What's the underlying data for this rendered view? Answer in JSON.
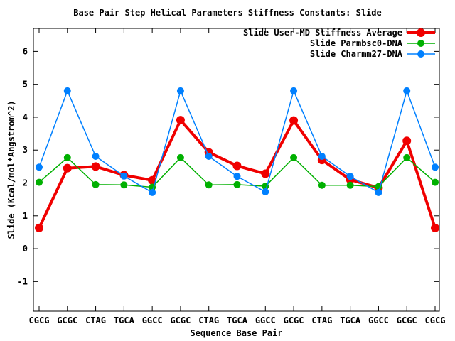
{
  "chart_data": {
    "type": "line",
    "title": "Base Pair Step Helical Parameters Stiffness Constants: Slide",
    "xlabel": "Sequence Base Pair",
    "ylabel": "Slide (Kcal/mol*Angstrom^2)",
    "categories": [
      "CGCG",
      "GCGC",
      "CTAG",
      "TGCA",
      "GGCC",
      "GCGC",
      "CTAG",
      "TGCA",
      "GGCC",
      "GCGC",
      "CTAG",
      "TGCA",
      "GGCC",
      "GCGC",
      "CGCG"
    ],
    "series": [
      {
        "name": "Slide User-MD Stiffness Average",
        "color": "#f00000",
        "line_width": 4,
        "marker": "filled-circle",
        "marker_radius": 6,
        "values": [
          0.63,
          2.45,
          2.5,
          2.24,
          2.08,
          3.91,
          2.93,
          2.52,
          2.28,
          3.9,
          2.7,
          2.1,
          1.85,
          3.28,
          0.63
        ]
      },
      {
        "name": "Slide Parmbsc0-DNA",
        "color": "#00b000",
        "line_width": 1.5,
        "marker": "filled-circle",
        "marker_radius": 5,
        "values": [
          2.02,
          2.77,
          1.95,
          1.94,
          1.87,
          2.77,
          1.94,
          1.95,
          1.9,
          2.77,
          1.93,
          1.93,
          1.89,
          2.77,
          2.02
        ]
      },
      {
        "name": "Slide Charmm27-DNA",
        "color": "#0080ff",
        "line_width": 1.5,
        "marker": "filled-circle",
        "marker_radius": 5,
        "values": [
          2.48,
          4.8,
          2.81,
          2.21,
          1.71,
          4.8,
          2.81,
          2.2,
          1.73,
          4.8,
          2.81,
          2.2,
          1.71,
          4.8,
          2.48
        ]
      }
    ],
    "ylim": [
      -1.9,
      6.7
    ],
    "yticks": [
      -1,
      0,
      1,
      2,
      3,
      4,
      5,
      6
    ],
    "legend_position": "top-right-inside",
    "grid": false,
    "background_color": "#ffffff",
    "text_color": "#000000",
    "border_color": "#000000"
  }
}
